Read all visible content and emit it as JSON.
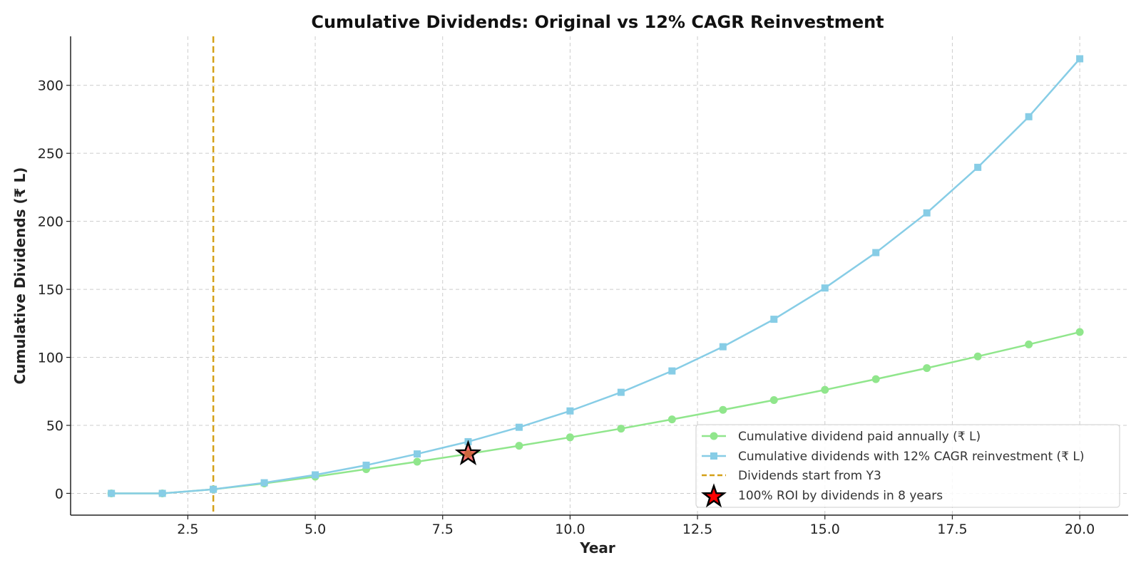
{
  "chart_data": {
    "type": "line",
    "title": "Cumulative Dividends: Original vs 12% CAGR Reinvestment",
    "xlabel": "Year",
    "ylabel": "Cumulative Dividends (₹ L)",
    "xlim": [
      0.2,
      20.95
    ],
    "ylim": [
      -16,
      336
    ],
    "xticks": [
      2.5,
      5.0,
      7.5,
      10.0,
      12.5,
      15.0,
      17.5,
      20.0
    ],
    "xtick_labels": [
      "2.5",
      "5.0",
      "7.5",
      "10.0",
      "12.5",
      "15.0",
      "17.5",
      "20.0"
    ],
    "yticks": [
      0,
      50,
      100,
      150,
      200,
      250,
      300
    ],
    "ytick_labels": [
      "0",
      "50",
      "100",
      "150",
      "200",
      "250",
      "300"
    ],
    "grid": true,
    "legend_position": "lower-right",
    "x": [
      1,
      2,
      3,
      4,
      5,
      6,
      7,
      8,
      9,
      10,
      11,
      12,
      13,
      14,
      15,
      16,
      17,
      18,
      19,
      20
    ],
    "series": [
      {
        "name": "Cumulative dividend paid annually (₹ L)",
        "marker": "circle",
        "color": "#90e68c",
        "values": [
          0,
          0,
          3,
          7.3,
          12.3,
          17.8,
          23.3,
          29,
          35,
          41.2,
          47.6,
          54.4,
          61.4,
          68.6,
          76.1,
          84,
          92.1,
          100.7,
          109.5,
          118.6
        ]
      },
      {
        "name": "Cumulative dividends with 12% CAGR reinvestment (₹ L)",
        "marker": "square",
        "color": "#87cde6",
        "values": [
          0,
          0,
          3,
          7.8,
          13.6,
          20.7,
          29,
          38,
          48.6,
          60.6,
          74.3,
          90,
          107.8,
          128,
          151,
          177,
          206.2,
          239.7,
          276.9,
          319.5
        ]
      }
    ],
    "reference_line": {
      "x": 3,
      "color": "#d4a017",
      "style": "dashed",
      "label": "Dividends start from Y3"
    },
    "annotation": {
      "x": 8,
      "y": 29,
      "marker": "star",
      "color": "#ff0000",
      "label": "100% ROI by dividends in 8 years"
    }
  }
}
